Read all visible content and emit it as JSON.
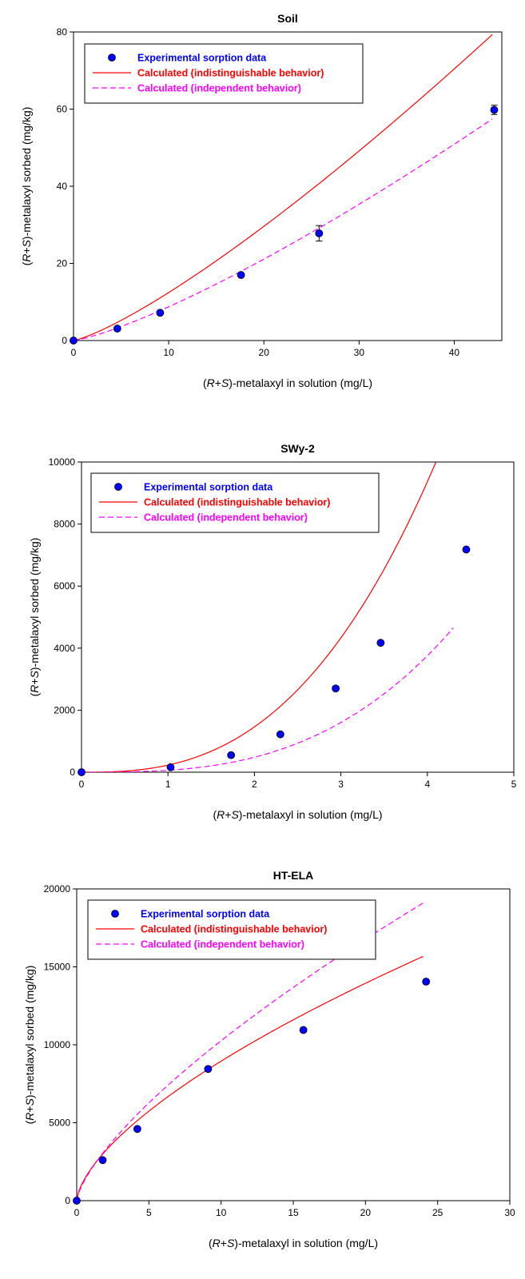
{
  "colors": {
    "experimental": "#0000ff",
    "indistinguishable": "#ff0000",
    "independent": "#ff00ff"
  },
  "legend": {
    "experimental": "Experimental sorption data",
    "indistinguishable": "Calculated (indistinguishable behavior)",
    "independent": "Calculated (independent behavior)"
  },
  "chart_data": [
    {
      "type": "scatter",
      "title": "Soil",
      "ylabel": "(R+S)-metalaxyl sorbed (mg/kg)",
      "xlabel": "(R+S)-metalaxyl in solution (mg/L)",
      "xlim": [
        0,
        45
      ],
      "ylim": [
        0,
        80
      ],
      "xticks": [
        0,
        10,
        20,
        30,
        40
      ],
      "yticks": [
        0,
        20,
        40,
        60,
        80
      ],
      "legend": "top-left",
      "series": [
        {
          "name": "Experimental sorption data",
          "kind": "points",
          "x": [
            0,
            4.6,
            9.1,
            17.6,
            25.8,
            44.2
          ],
          "y": [
            0,
            3.1,
            7.2,
            17.0,
            27.8,
            59.8
          ],
          "err": [
            0,
            0,
            0,
            0,
            2.0,
            1.2
          ]
        },
        {
          "name": "Calculated (indistinguishable behavior)",
          "kind": "solid",
          "func": {
            "k": 0.7,
            "n": 1.25
          },
          "xrange": [
            0,
            44
          ]
        },
        {
          "name": "Calculated (independent behavior)",
          "kind": "dashed",
          "func": {
            "k": 0.47,
            "n": 1.27
          },
          "xrange": [
            0,
            44
          ]
        }
      ]
    },
    {
      "type": "scatter",
      "title": "SWy-2",
      "ylabel": "(R+S)-metalaxyl sorbed (mg/kg)",
      "xlabel": "(R+S)-metalaxyl in solution (mg/L)",
      "xlim": [
        0,
        5
      ],
      "ylim": [
        0,
        10000
      ],
      "xticks": [
        0,
        1,
        2,
        3,
        4,
        5
      ],
      "yticks": [
        0,
        2000,
        4000,
        6000,
        8000,
        10000
      ],
      "legend": "top-left",
      "series": [
        {
          "name": "Experimental sorption data",
          "kind": "points",
          "x": [
            0,
            1.03,
            1.73,
            2.3,
            2.94,
            3.46,
            4.45
          ],
          "y": [
            0,
            160,
            550,
            1220,
            2700,
            4170,
            7180
          ]
        },
        {
          "name": "Calculated (indistinguishable behavior)",
          "kind": "solid",
          "func": {
            "k": 228,
            "n": 2.68
          },
          "xrange": [
            0,
            4.1
          ]
        },
        {
          "name": "Calculated (independent behavior)",
          "kind": "dashed",
          "func": {
            "k": 62,
            "n": 2.96
          },
          "xrange": [
            0,
            4.3
          ]
        }
      ]
    },
    {
      "type": "scatter",
      "title": "HT-ELA",
      "ylabel": "(R+S)-metalaxyl sorbed (mg/kg)",
      "xlabel": "(R+S)-metalaxyl in solution (mg/L)",
      "xlim": [
        0,
        30
      ],
      "ylim": [
        0,
        20000
      ],
      "xticks": [
        0,
        5,
        10,
        15,
        20,
        25,
        30
      ],
      "yticks": [
        0,
        5000,
        10000,
        15000,
        20000
      ],
      "legend": "top-left",
      "series": [
        {
          "name": "Experimental sorption data",
          "kind": "points",
          "x": [
            0,
            1.8,
            4.2,
            9.1,
            15.7,
            24.2
          ],
          "y": [
            0,
            2600,
            4600,
            8450,
            10950,
            14050
          ]
        },
        {
          "name": "Calculated (indistinguishable behavior)",
          "kind": "solid",
          "func": {
            "k": 2050,
            "n": 0.64
          },
          "xrange": [
            0,
            24
          ]
        },
        {
          "name": "Calculated (independent behavior)",
          "kind": "dashed",
          "func": {
            "k": 2000,
            "n": 0.71
          },
          "xrange": [
            0,
            24
          ]
        }
      ]
    }
  ]
}
